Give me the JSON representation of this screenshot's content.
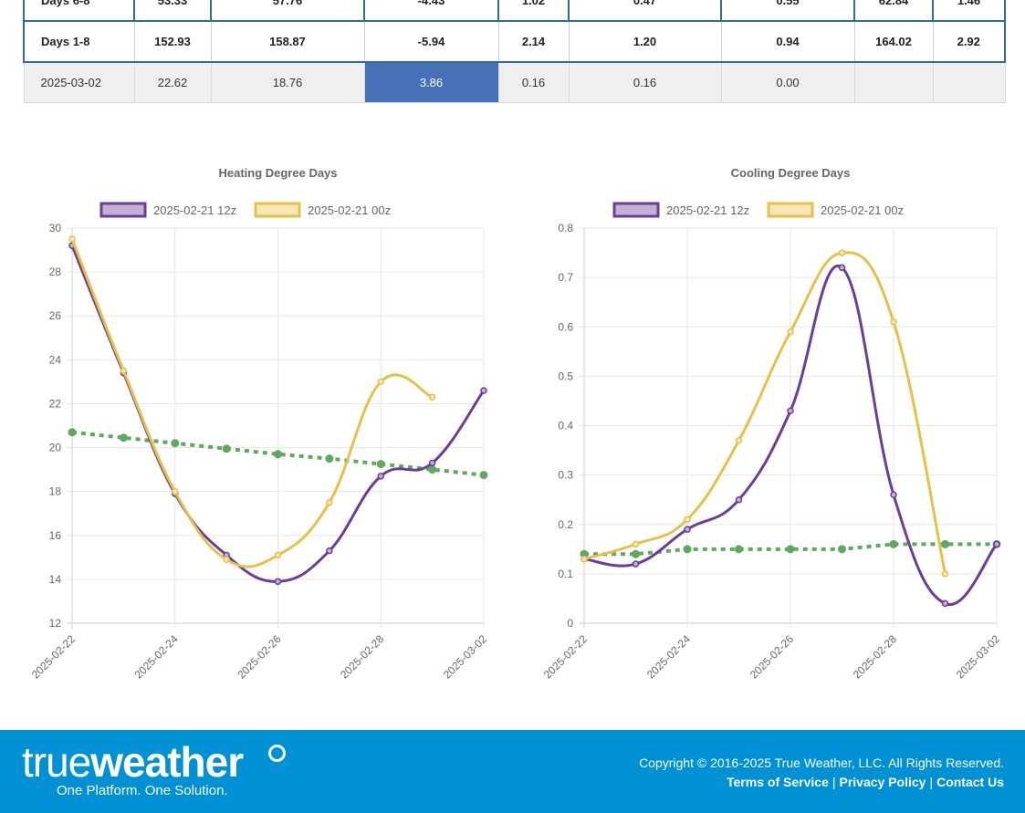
{
  "table": {
    "rows": [
      {
        "kind": "sum",
        "cells": [
          "Days 6-8",
          "53.33",
          "57.76",
          "-4.43",
          "1.02",
          "0.47",
          "0.55",
          "62.84",
          "1.46"
        ]
      },
      {
        "kind": "sum",
        "cells": [
          "Days 1-8",
          "152.93",
          "158.87",
          "-5.94",
          "2.14",
          "1.20",
          "0.94",
          "164.02",
          "2.92"
        ]
      },
      {
        "kind": "day",
        "cells": [
          "2025-03-02",
          "22.62",
          "18.76",
          "3.86",
          "0.16",
          "0.16",
          "0.00",
          "",
          ""
        ],
        "highlight_col": 3
      }
    ],
    "highlight_color": "#4670b8"
  },
  "chart_data": [
    {
      "type": "line",
      "title": "Heating Degree Days",
      "x": [
        "2025-02-22",
        "2025-02-23",
        "2025-02-24",
        "2025-02-25",
        "2025-02-26",
        "2025-02-27",
        "2025-02-28",
        "2025-03-01",
        "2025-03-02"
      ],
      "x_tick_labels": [
        "2025-02-22",
        "2025-02-24",
        "2025-02-26",
        "2025-02-28",
        "2025-03-02"
      ],
      "ylim": [
        12,
        30
      ],
      "y_ticks": [
        12,
        14,
        16,
        18,
        20,
        22,
        24,
        26,
        28,
        30
      ],
      "grid": true,
      "legend": "top",
      "series": [
        {
          "name": "2025-02-21 12z",
          "color": "#6a3d9a",
          "fill": "#c5b0d5",
          "values": [
            29.2,
            23.4,
            17.9,
            15.1,
            13.9,
            15.3,
            18.7,
            19.3,
            22.6
          ]
        },
        {
          "name": "2025-02-21 00z",
          "color": "#e6c14a",
          "fill": "#f7e5b3",
          "values": [
            29.5,
            23.5,
            18.0,
            14.9,
            15.1,
            17.5,
            23.0,
            22.3,
            null
          ]
        },
        {
          "color": "#5fa85f",
          "dashed": true,
          "values": [
            20.7,
            20.45,
            20.2,
            19.95,
            19.7,
            19.5,
            19.25,
            19.0,
            18.75
          ]
        }
      ]
    },
    {
      "type": "line",
      "title": "Cooling Degree Days",
      "x": [
        "2025-02-22",
        "2025-02-23",
        "2025-02-24",
        "2025-02-25",
        "2025-02-26",
        "2025-02-27",
        "2025-02-28",
        "2025-03-01",
        "2025-03-02"
      ],
      "x_tick_labels": [
        "2025-02-22",
        "2025-02-24",
        "2025-02-26",
        "2025-02-28",
        "2025-03-02"
      ],
      "ylim": [
        0,
        0.8
      ],
      "y_ticks": [
        "0",
        "0.1",
        "0.2",
        "0.3",
        "0.4",
        "0.5",
        "0.6",
        "0.7",
        "0.8"
      ],
      "grid": true,
      "legend": "top",
      "series": [
        {
          "name": "2025-02-21 12z",
          "color": "#6a3d9a",
          "fill": "#c5b0d5",
          "values": [
            0.13,
            0.12,
            0.19,
            0.25,
            0.43,
            0.72,
            0.26,
            0.04,
            0.16
          ]
        },
        {
          "name": "2025-02-21 00z",
          "color": "#e6c14a",
          "fill": "#f7e5b3",
          "values": [
            0.13,
            0.16,
            0.21,
            0.37,
            0.59,
            0.75,
            0.61,
            0.1,
            null
          ]
        },
        {
          "color": "#5fa85f",
          "dashed": true,
          "values": [
            0.14,
            0.14,
            0.15,
            0.15,
            0.15,
            0.15,
            0.16,
            0.16,
            0.16
          ]
        }
      ]
    }
  ],
  "footer": {
    "logo_light": "true",
    "logo_bold": "weather",
    "tagline": "One Platform. One Solution.",
    "copyright": "Copyright © 2016-2025 True Weather, LLC. All Rights Reserved.",
    "links": [
      "Terms of Service",
      "Privacy Policy",
      "Contact Us"
    ],
    "bg_color": "#0091d5"
  }
}
